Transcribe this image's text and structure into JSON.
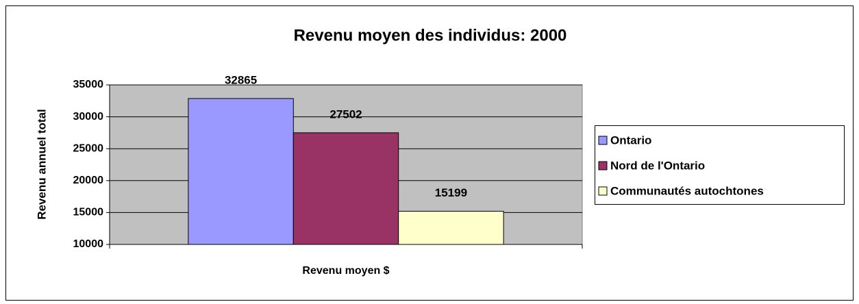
{
  "chart_data": {
    "type": "bar",
    "title": "Revenu moyen des individus: 2000",
    "y_label": "Revenu annuel total",
    "categories": [
      "Revenu moyen $"
    ],
    "series": [
      {
        "name": "Ontario",
        "color": "#9999ff",
        "values": [
          32865
        ]
      },
      {
        "name": "Nord de l'Ontario",
        "color": "#993366",
        "values": [
          27502
        ]
      },
      {
        "name": "Communautés autochtones",
        "color": "#ffffcc",
        "values": [
          15199
        ]
      }
    ],
    "ylim": [
      10000,
      35000
    ],
    "yticks": [
      10000,
      15000,
      20000,
      25000,
      30000,
      35000
    ],
    "grid": true,
    "legend": "right"
  }
}
